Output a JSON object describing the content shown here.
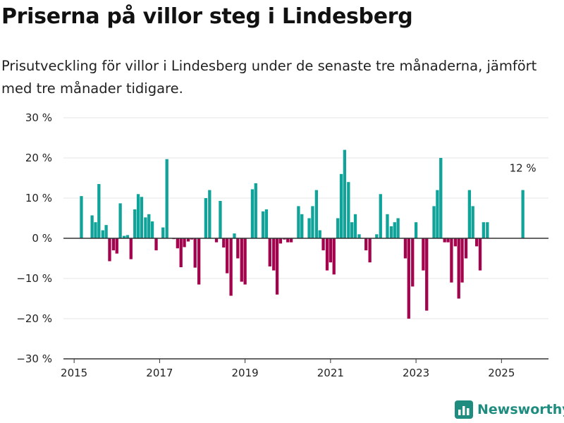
{
  "title": "Priserna på villor steg i Lindesberg",
  "subtitle": "Prisutveckling för villor i Lindesberg under de senaste tre månaderna, jämfört med tre månader tidigare.",
  "brand": {
    "name": "Newsworthy",
    "icon": "bar-chart-logo-icon"
  },
  "colors": {
    "positive": "#0fa39a",
    "negative": "#a3024d",
    "grid": "#e5e5e5",
    "axis": "#333333",
    "brand": "#1e8c7e"
  },
  "chart_data": {
    "type": "bar",
    "title": "Priserna på villor steg i Lindesberg",
    "subtitle": "Prisutveckling för villor i Lindesberg under de senaste tre månaderna, jämfört med tre månader tidigare.",
    "unit": "%",
    "ylim": [
      -30,
      30
    ],
    "y_ticks": [
      30,
      20,
      10,
      0,
      -10,
      -20,
      -30
    ],
    "y_tick_labels": [
      "30 %",
      "20 %",
      "10 %",
      "0 %",
      "−10 %",
      "−20 %",
      "−30 %"
    ],
    "xlim": [
      2014.75,
      2026.1
    ],
    "x_ticks": [
      2015,
      2017,
      2019,
      2021,
      2023,
      2025
    ],
    "x_tick_labels": [
      "2015",
      "2017",
      "2019",
      "2021",
      "2023",
      "2025"
    ],
    "grid": true,
    "annotation": {
      "text": "12 %",
      "x": 2025.5,
      "y": 12
    },
    "points": [
      {
        "x": 2015.17,
        "y": 10.5
      },
      {
        "x": 2015.42,
        "y": 5.7
      },
      {
        "x": 2015.5,
        "y": 4
      },
      {
        "x": 2015.58,
        "y": 13.5
      },
      {
        "x": 2015.67,
        "y": 2
      },
      {
        "x": 2015.75,
        "y": 3.3
      },
      {
        "x": 2015.83,
        "y": -5.7
      },
      {
        "x": 2015.92,
        "y": -3
      },
      {
        "x": 2016.0,
        "y": -3.8
      },
      {
        "x": 2016.08,
        "y": 8.7
      },
      {
        "x": 2016.17,
        "y": 0.6
      },
      {
        "x": 2016.25,
        "y": 0.8
      },
      {
        "x": 2016.33,
        "y": -5.2
      },
      {
        "x": 2016.42,
        "y": 7.2
      },
      {
        "x": 2016.5,
        "y": 11
      },
      {
        "x": 2016.58,
        "y": 10.3
      },
      {
        "x": 2016.67,
        "y": 5.2
      },
      {
        "x": 2016.75,
        "y": 6
      },
      {
        "x": 2016.83,
        "y": 4.2
      },
      {
        "x": 2016.92,
        "y": -3
      },
      {
        "x": 2017.08,
        "y": 2.7
      },
      {
        "x": 2017.17,
        "y": 19.7
      },
      {
        "x": 2017.33,
        "y": -0.2
      },
      {
        "x": 2017.42,
        "y": -2.5
      },
      {
        "x": 2017.5,
        "y": -7.2
      },
      {
        "x": 2017.58,
        "y": -2.2
      },
      {
        "x": 2017.67,
        "y": -0.8
      },
      {
        "x": 2017.75,
        "y": -0.3
      },
      {
        "x": 2017.83,
        "y": -7.3
      },
      {
        "x": 2017.92,
        "y": -11.5
      },
      {
        "x": 2018.08,
        "y": 10
      },
      {
        "x": 2018.17,
        "y": 12
      },
      {
        "x": 2018.33,
        "y": -1
      },
      {
        "x": 2018.42,
        "y": 9.3
      },
      {
        "x": 2018.5,
        "y": -2.3
      },
      {
        "x": 2018.58,
        "y": -8.7
      },
      {
        "x": 2018.67,
        "y": -14.3
      },
      {
        "x": 2018.75,
        "y": 1.2
      },
      {
        "x": 2018.83,
        "y": -5
      },
      {
        "x": 2018.92,
        "y": -10.8
      },
      {
        "x": 2019.0,
        "y": -11.5
      },
      {
        "x": 2019.17,
        "y": 12.2
      },
      {
        "x": 2019.25,
        "y": 13.7
      },
      {
        "x": 2019.42,
        "y": 6.7
      },
      {
        "x": 2019.5,
        "y": 7.2
      },
      {
        "x": 2019.58,
        "y": -7
      },
      {
        "x": 2019.67,
        "y": -8
      },
      {
        "x": 2019.75,
        "y": -14
      },
      {
        "x": 2019.83,
        "y": -1.3
      },
      {
        "x": 2019.92,
        "y": -0.3
      },
      {
        "x": 2020.0,
        "y": -1
      },
      {
        "x": 2020.08,
        "y": -1
      },
      {
        "x": 2020.25,
        "y": 8
      },
      {
        "x": 2020.33,
        "y": 6
      },
      {
        "x": 2020.5,
        "y": 5
      },
      {
        "x": 2020.58,
        "y": 8
      },
      {
        "x": 2020.67,
        "y": 12
      },
      {
        "x": 2020.75,
        "y": 2
      },
      {
        "x": 2020.83,
        "y": -3
      },
      {
        "x": 2020.92,
        "y": -8
      },
      {
        "x": 2021.0,
        "y": -6
      },
      {
        "x": 2021.08,
        "y": -9
      },
      {
        "x": 2021.17,
        "y": 5
      },
      {
        "x": 2021.25,
        "y": 16
      },
      {
        "x": 2021.33,
        "y": 22
      },
      {
        "x": 2021.42,
        "y": 14
      },
      {
        "x": 2021.5,
        "y": 4
      },
      {
        "x": 2021.58,
        "y": 6
      },
      {
        "x": 2021.67,
        "y": 1
      },
      {
        "x": 2021.83,
        "y": -3
      },
      {
        "x": 2021.92,
        "y": -6
      },
      {
        "x": 2022.08,
        "y": 1
      },
      {
        "x": 2022.17,
        "y": 11
      },
      {
        "x": 2022.33,
        "y": 6
      },
      {
        "x": 2022.42,
        "y": 3
      },
      {
        "x": 2022.5,
        "y": 4
      },
      {
        "x": 2022.58,
        "y": 5
      },
      {
        "x": 2022.75,
        "y": -5
      },
      {
        "x": 2022.83,
        "y": -20
      },
      {
        "x": 2022.92,
        "y": -12
      },
      {
        "x": 2023.0,
        "y": 4
      },
      {
        "x": 2023.17,
        "y": -8
      },
      {
        "x": 2023.25,
        "y": -18
      },
      {
        "x": 2023.42,
        "y": 8
      },
      {
        "x": 2023.5,
        "y": 12
      },
      {
        "x": 2023.58,
        "y": 20
      },
      {
        "x": 2023.67,
        "y": -1
      },
      {
        "x": 2023.75,
        "y": -1
      },
      {
        "x": 2023.83,
        "y": -11
      },
      {
        "x": 2023.92,
        "y": -2
      },
      {
        "x": 2024.0,
        "y": -15
      },
      {
        "x": 2024.08,
        "y": -11
      },
      {
        "x": 2024.17,
        "y": -5
      },
      {
        "x": 2024.25,
        "y": 12
      },
      {
        "x": 2024.33,
        "y": 8
      },
      {
        "x": 2024.42,
        "y": -2
      },
      {
        "x": 2024.5,
        "y": -8
      },
      {
        "x": 2024.58,
        "y": 4
      },
      {
        "x": 2024.67,
        "y": 4
      },
      {
        "x": 2025.5,
        "y": 12
      }
    ]
  }
}
